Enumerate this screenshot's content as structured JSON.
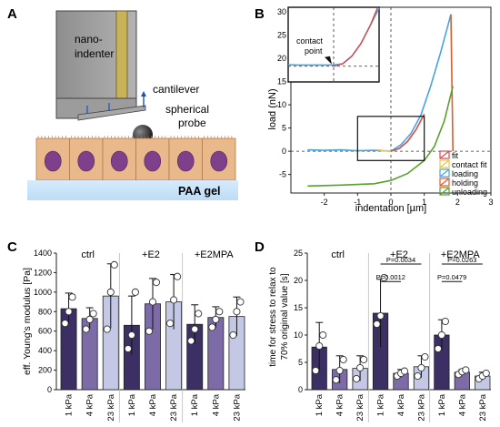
{
  "panels": {
    "A": {
      "letter": "A",
      "labels": {
        "nanoindenter_1": "nano-",
        "nanoindenter_2": "indenter",
        "cantilever": "cantilever",
        "probe_1": "spherical",
        "probe_2": "probe",
        "gel": "PAA gel"
      },
      "colors": {
        "cells": "#e9b98c",
        "nuclei": "#7f3f8a",
        "gel": "#cfe7fb",
        "device": "#9a9a9a",
        "tip": "#c8b25a"
      }
    },
    "B": {
      "letter": "B"
    },
    "C": {
      "letter": "C"
    },
    "D": {
      "letter": "D"
    }
  },
  "chart_data": [
    {
      "panel": "B",
      "type": "line",
      "xlabel": "indentation [µm]",
      "ylabel": "load (nN)",
      "xlim": [
        -3,
        3
      ],
      "ylim": [
        -9,
        31
      ],
      "xticks": [
        -2,
        -1,
        0,
        1,
        2,
        3
      ],
      "yticks": [
        -5,
        0,
        5,
        10,
        15,
        20,
        25,
        30
      ],
      "legend": [
        "fit",
        "contact fit",
        "loading",
        "holding",
        "unloading"
      ],
      "legend_position": "bottom-right",
      "series": [
        {
          "name": "loading",
          "color": "#4aa3df",
          "x": [
            -2.5,
            -2.0,
            -1.5,
            -1.0,
            -0.5,
            0.0,
            0.3,
            0.6,
            0.9,
            1.2,
            1.5,
            1.8
          ],
          "y": [
            0.3,
            0.2,
            0.3,
            0.1,
            0.2,
            0.0,
            1.4,
            3.8,
            7.8,
            14.2,
            21.5,
            29.5
          ]
        },
        {
          "name": "holding",
          "color": "#e35a2b",
          "x": [
            1.8,
            1.82,
            1.84,
            1.86
          ],
          "y": [
            29.5,
            20.0,
            10.0,
            0.0
          ]
        },
        {
          "name": "unloading",
          "color": "#5aa02c",
          "x": [
            -2.5,
            -1.5,
            -0.5,
            0.0,
            0.5,
            1.0,
            1.3,
            1.6,
            1.86
          ],
          "y": [
            -7.5,
            -7.3,
            -7.0,
            -6.3,
            -4.8,
            -2.0,
            1.0,
            6.5,
            14.0
          ]
        },
        {
          "name": "fit",
          "color": "#d94b4b",
          "x": [
            0.0,
            0.25,
            0.5,
            0.75,
            1.0
          ],
          "y": [
            0.0,
            0.6,
            2.1,
            4.6,
            8.0
          ]
        },
        {
          "name": "contact fit",
          "color": "#e3c84a",
          "x": [
            -0.4,
            -0.2,
            0.0
          ],
          "y": [
            0.3,
            0.1,
            0.0
          ]
        }
      ],
      "inset": {
        "label_1": "contact",
        "label_2": "point"
      }
    },
    {
      "panel": "C",
      "type": "bar",
      "ylabel": "eff. Young's modulus [Pa]",
      "ylim": [
        0,
        1400
      ],
      "yticks": [
        0,
        200,
        400,
        600,
        800,
        1000,
        1200,
        1400
      ],
      "groups": [
        "ctrl",
        "+E2",
        "+E2MPA"
      ],
      "categories": [
        "1 kPa",
        "4 kPa",
        "23 kPa"
      ],
      "colors": [
        "#3b2f63",
        "#7d6ba8",
        "#c4c8e4"
      ],
      "series": [
        {
          "group": "ctrl",
          "values": [
            830,
            730,
            960
          ],
          "errors": [
            160,
            110,
            330
          ],
          "points": [
            [
              680,
              800,
              950
            ],
            [
              620,
              720,
              780
            ],
            [
              620,
              1000,
              1280
            ]
          ]
        },
        {
          "group": "+E2",
          "values": [
            660,
            880,
            900
          ],
          "errors": [
            300,
            260,
            280
          ],
          "points": [
            [
              420,
              560,
              1000
            ],
            [
              600,
              900,
              1100
            ],
            [
              680,
              920,
              1160
            ]
          ]
        },
        {
          "group": "+E2MPA",
          "values": [
            670,
            740,
            750
          ],
          "errors": [
            200,
            110,
            200
          ],
          "points": [
            [
              500,
              620,
              780
            ],
            [
              640,
              720,
              800
            ],
            [
              560,
              800,
              900
            ]
          ]
        }
      ]
    },
    {
      "panel": "D",
      "type": "bar",
      "ylabel_1": "time for stress to relax to",
      "ylabel_2": "70% original value [s]",
      "ylim": [
        0,
        25
      ],
      "yticks": [
        0,
        5,
        10,
        15,
        20,
        25
      ],
      "groups": [
        "ctrl",
        "+E2",
        "+E2MPA"
      ],
      "categories": [
        "1 kPa",
        "4 kPa",
        "23 kPa"
      ],
      "colors": [
        "#3b2f63",
        "#7d6ba8",
        "#c4c8e4"
      ],
      "series": [
        {
          "group": "ctrl",
          "values": [
            7.8,
            3.7,
            3.9
          ],
          "errors": [
            4.5,
            2.5,
            2.3
          ],
          "points": [
            [
              3.5,
              8.0,
              10.0
            ],
            [
              1.8,
              3.5,
              5.5
            ],
            [
              2.0,
              4.0,
              5.5
            ]
          ]
        },
        {
          "group": "+E2",
          "values": [
            14.0,
            3.0,
            4.2
          ],
          "errors": [
            6.2,
            0.7,
            2.0
          ],
          "points": [
            [
              12.0,
              13.5,
              20.5
            ],
            [
              2.5,
              3.0,
              3.4
            ],
            [
              2.5,
              4.0,
              6.0
            ]
          ]
        },
        {
          "group": "+E2MPA",
          "values": [
            10.0,
            3.2,
            2.5
          ],
          "errors": [
            2.8,
            0.5,
            0.7
          ],
          "points": [
            [
              7.5,
              10.0,
              12.5
            ],
            [
              2.8,
              3.3,
              3.6
            ],
            [
              2.0,
              2.5,
              3.0
            ]
          ]
        }
      ],
      "significance": [
        {
          "group": "+E2",
          "label": "P=0.0034",
          "from": 0,
          "to": 2
        },
        {
          "group": "+E2",
          "label": "P=0.0012",
          "from": 0,
          "to": 1
        },
        {
          "group": "+E2MPA",
          "label": "P=0.0263",
          "from": 0,
          "to": 2
        },
        {
          "group": "+E2MPA",
          "label": "P=0.0479",
          "from": 0,
          "to": 1
        }
      ]
    }
  ]
}
